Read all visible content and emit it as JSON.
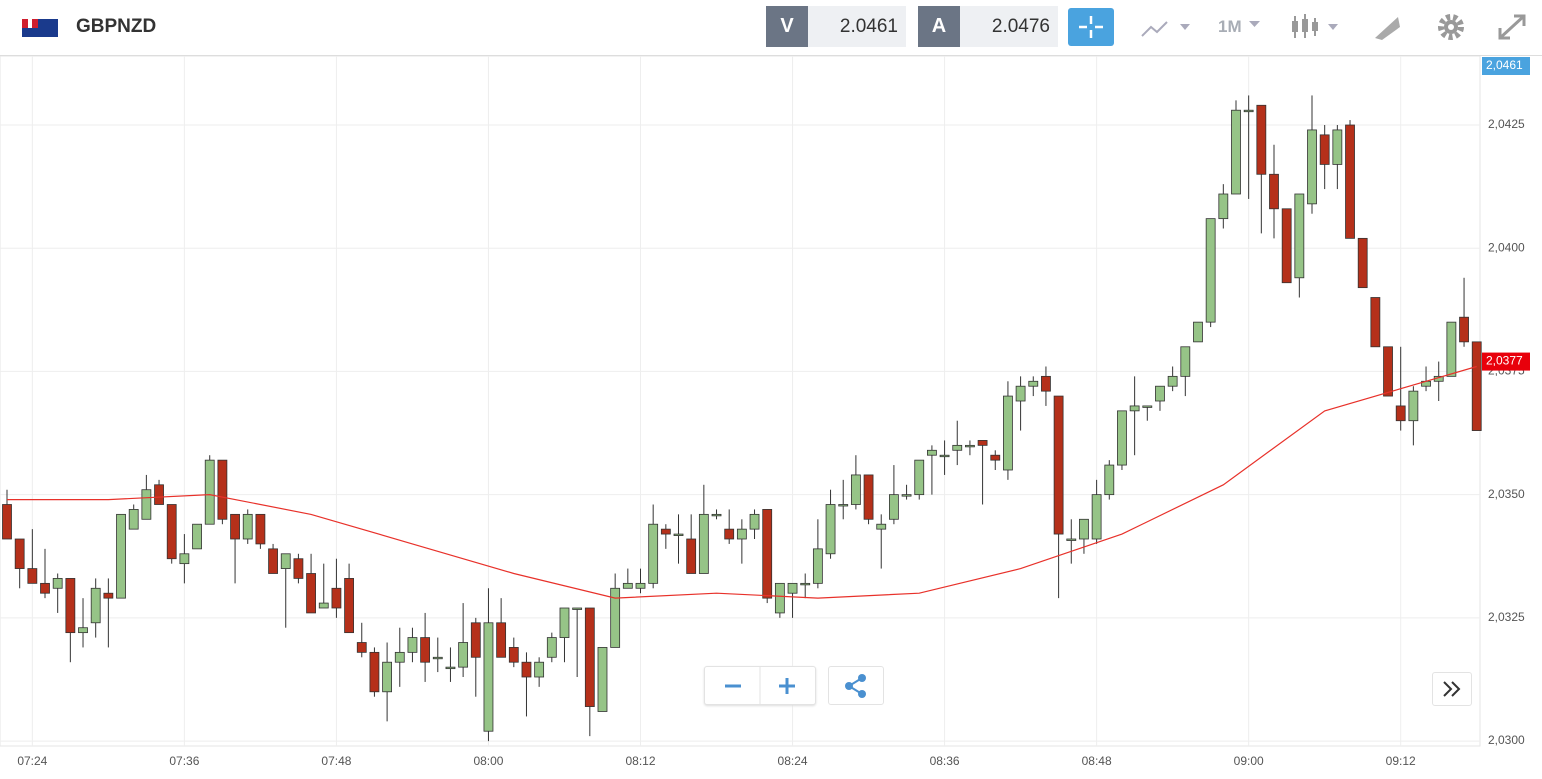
{
  "header": {
    "symbol": "GBPNZD",
    "bid_label": "V",
    "bid": "2.0461",
    "ask_label": "A",
    "ask": "2.0476",
    "timeframe": "1M"
  },
  "chart_data": {
    "type": "candlestick",
    "x": [
      "07:22",
      "07:23",
      "07:24",
      "07:25",
      "07:26",
      "07:27",
      "07:28",
      "07:29",
      "07:30",
      "07:31",
      "07:32",
      "07:33",
      "07:34",
      "07:35",
      "07:36",
      "07:37",
      "07:38",
      "07:39",
      "07:40",
      "07:41",
      "07:42",
      "07:43",
      "07:44",
      "07:45",
      "07:46",
      "07:47",
      "07:48",
      "07:49",
      "07:50",
      "07:51",
      "07:52",
      "07:53",
      "07:54",
      "07:55",
      "07:56",
      "07:57",
      "07:58",
      "07:59",
      "08:00",
      "08:01",
      "08:02",
      "08:03",
      "08:04",
      "08:05",
      "08:06",
      "08:07",
      "08:08",
      "08:09",
      "08:10",
      "08:11",
      "08:12",
      "08:13",
      "08:14",
      "08:15",
      "08:16",
      "08:17",
      "08:18",
      "08:19",
      "08:20",
      "08:21",
      "08:22",
      "08:23",
      "08:24",
      "08:25",
      "08:26",
      "08:27",
      "08:28",
      "08:29",
      "08:30",
      "08:31",
      "08:32",
      "08:33",
      "08:34",
      "08:35",
      "08:36",
      "08:37",
      "08:38",
      "08:39",
      "08:40",
      "08:41",
      "08:42",
      "08:43",
      "08:44",
      "08:45",
      "08:46",
      "08:47",
      "08:48",
      "08:49",
      "08:50",
      "08:51",
      "08:52",
      "08:53",
      "08:54",
      "08:55",
      "08:56",
      "08:57",
      "08:58",
      "08:59",
      "09:00",
      "09:01",
      "09:02",
      "09:03",
      "09:04",
      "09:05",
      "09:06",
      "09:07",
      "09:08",
      "09:09",
      "09:10",
      "09:11",
      "09:12",
      "09:13",
      "09:14",
      "09:15",
      "09:16",
      "09:17",
      "09:18"
    ],
    "open": [
      2.0348,
      2.0341,
      2.0335,
      2.0332,
      2.0331,
      2.0333,
      2.0322,
      2.0324,
      2.033,
      2.0329,
      2.0343,
      2.0345,
      2.0352,
      2.0348,
      2.0336,
      2.0339,
      2.0344,
      2.0357,
      2.0346,
      2.0341,
      2.0346,
      2.0339,
      2.0335,
      2.0337,
      2.0334,
      2.0327,
      2.0331,
      2.0333,
      2.032,
      2.0318,
      2.031,
      2.0316,
      2.0318,
      2.0321,
      2.0317,
      2.0315,
      2.0315,
      2.0324,
      2.0302,
      2.0324,
      2.0319,
      2.0316,
      2.0313,
      2.0317,
      2.0321,
      2.0327,
      2.0327,
      2.0306,
      2.0319,
      2.0331,
      2.0331,
      2.0332,
      2.0343,
      2.0342,
      2.0341,
      2.0334,
      2.0346,
      2.0343,
      2.0341,
      2.0343,
      2.0347,
      2.0326,
      2.033,
      2.0332,
      2.0332,
      2.0338,
      2.0348,
      2.0348,
      2.0354,
      2.0343,
      2.0345,
      2.035,
      2.035,
      2.0358,
      2.0358,
      2.0359,
      2.036,
      2.0361,
      2.0358,
      2.0355,
      2.0369,
      2.0372,
      2.0374,
      2.037,
      2.0341,
      2.0341,
      2.0341,
      2.035,
      2.0356,
      2.0367,
      2.0368,
      2.0369,
      2.0372,
      2.0374,
      2.0381,
      2.0385,
      2.0406,
      2.0411,
      2.0428,
      2.0429,
      2.0415,
      2.0408,
      2.0394,
      2.0409,
      2.0423,
      2.0417,
      2.0425,
      2.0402,
      2.039,
      2.038,
      2.0368,
      2.0365,
      2.0372,
      2.0373,
      2.0374,
      2.0386,
      2.0381
    ],
    "high": [
      2.0351,
      2.0341,
      2.0343,
      2.0339,
      2.0334,
      2.0333,
      2.0329,
      2.0333,
      2.0333,
      2.0346,
      2.0348,
      2.0354,
      2.0353,
      2.0348,
      2.0342,
      2.0344,
      2.0358,
      2.0357,
      2.0346,
      2.0347,
      2.0346,
      2.034,
      2.0338,
      2.0338,
      2.0338,
      2.0336,
      2.0337,
      2.0336,
      2.0324,
      2.0319,
      2.032,
      2.0323,
      2.0323,
      2.0326,
      2.0321,
      2.0319,
      2.0328,
      2.0325,
      2.0331,
      2.0329,
      2.0321,
      2.0318,
      2.0317,
      2.0322,
      2.0327,
      2.0327,
      2.0327,
      2.0319,
      2.0334,
      2.0335,
      2.0335,
      2.0348,
      2.0344,
      2.0346,
      2.0346,
      2.0352,
      2.0347,
      2.0347,
      2.0345,
      2.0347,
      2.0347,
      2.0332,
      2.0332,
      2.0334,
      2.0345,
      2.0351,
      2.0353,
      2.0358,
      2.0354,
      2.0346,
      2.0356,
      2.0352,
      2.0357,
      2.036,
      2.0361,
      2.0365,
      2.0361,
      2.0361,
      2.0359,
      2.0373,
      2.0374,
      2.0374,
      2.0376,
      2.037,
      2.0345,
      2.0345,
      2.0353,
      2.0357,
      2.0367,
      2.0374,
      2.0368,
      2.0372,
      2.0376,
      2.038,
      2.0385,
      2.0406,
      2.0413,
      2.043,
      2.0431,
      2.0429,
      2.0421,
      2.0408,
      2.0411,
      2.0431,
      2.0425,
      2.0425,
      2.0426,
      2.0402,
      2.039,
      2.038,
      2.038,
      2.0372,
      2.0376,
      2.0377,
      2.0385,
      2.0394,
      2.0381
    ],
    "low": [
      2.0341,
      2.0331,
      2.0332,
      2.0329,
      2.0326,
      2.0316,
      2.0319,
      2.0321,
      2.0319,
      2.0329,
      2.0343,
      2.0345,
      2.0348,
      2.0336,
      2.0332,
      2.0339,
      2.0344,
      2.0344,
      2.0332,
      2.034,
      2.0339,
      2.0334,
      2.0323,
      2.0332,
      2.0326,
      2.0327,
      2.0325,
      2.0322,
      2.0317,
      2.0309,
      2.0304,
      2.0311,
      2.0316,
      2.0312,
      2.0314,
      2.0312,
      2.0313,
      2.0309,
      2.03,
      2.0317,
      2.0315,
      2.0305,
      2.0311,
      2.0316,
      2.0316,
      2.0313,
      2.0301,
      2.0306,
      2.0319,
      2.0331,
      2.033,
      2.0331,
      2.0339,
      2.0336,
      2.0334,
      2.0334,
      2.0345,
      2.034,
      2.0336,
      2.0341,
      2.0328,
      2.0325,
      2.0325,
      2.0329,
      2.0331,
      2.0337,
      2.0345,
      2.0347,
      2.0344,
      2.0335,
      2.0344,
      2.0349,
      2.0349,
      2.035,
      2.0354,
      2.0356,
      2.0358,
      2.0348,
      2.0355,
      2.0353,
      2.0363,
      2.037,
      2.0368,
      2.0329,
      2.0336,
      2.0338,
      2.034,
      2.0349,
      2.0355,
      2.0358,
      2.0365,
      2.0367,
      2.0371,
      2.037,
      2.0381,
      2.0384,
      2.0404,
      2.0411,
      2.041,
      2.0403,
      2.0402,
      2.0393,
      2.039,
      2.0407,
      2.0412,
      2.0412,
      2.0402,
      2.0392,
      2.038,
      2.037,
      2.0363,
      2.036,
      2.0371,
      2.0369,
      2.0374,
      2.038,
      2.0363
    ],
    "close": [
      2.0341,
      2.0335,
      2.0332,
      2.033,
      2.0333,
      2.0322,
      2.0323,
      2.0331,
      2.0329,
      2.0346,
      2.0347,
      2.0351,
      2.0348,
      2.0337,
      2.0338,
      2.0344,
      2.0357,
      2.0345,
      2.0341,
      2.0346,
      2.034,
      2.0334,
      2.0338,
      2.0333,
      2.0326,
      2.0328,
      2.0327,
      2.0322,
      2.0318,
      2.031,
      2.0316,
      2.0318,
      2.0321,
      2.0316,
      2.0317,
      2.0315,
      2.032,
      2.0317,
      2.0324,
      2.0317,
      2.0316,
      2.0313,
      2.0316,
      2.0321,
      2.0327,
      2.0327,
      2.0307,
      2.0319,
      2.0331,
      2.0332,
      2.0332,
      2.0344,
      2.0342,
      2.0342,
      2.0334,
      2.0346,
      2.0346,
      2.0341,
      2.0343,
      2.0346,
      2.0329,
      2.0332,
      2.0332,
      2.0332,
      2.0339,
      2.0348,
      2.0348,
      2.0354,
      2.0345,
      2.0344,
      2.035,
      2.035,
      2.0357,
      2.0359,
      2.0358,
      2.036,
      2.036,
      2.036,
      2.0357,
      2.037,
      2.0372,
      2.0373,
      2.0371,
      2.0342,
      2.0341,
      2.0345,
      2.035,
      2.0356,
      2.0367,
      2.0368,
      2.0368,
      2.0372,
      2.0374,
      2.038,
      2.0385,
      2.0406,
      2.0411,
      2.0428,
      2.0428,
      2.0415,
      2.0408,
      2.0393,
      2.0411,
      2.0424,
      2.0417,
      2.0424,
      2.0402,
      2.0392,
      2.038,
      2.037,
      2.0365,
      2.0371,
      2.0373,
      2.0374,
      2.0385,
      2.0381,
      2.0363
    ],
    "up_color": "#96c487",
    "down_color": "#b5301a",
    "ma_x": [
      "07:22",
      "07:30",
      "07:38",
      "07:46",
      "07:54",
      "08:02",
      "08:10",
      "08:18",
      "08:26",
      "08:34",
      "08:42",
      "08:50",
      "08:58",
      "09:06",
      "09:14",
      "09:18"
    ],
    "ma_values": [
      2.0349,
      2.0349,
      2.035,
      2.0346,
      2.034,
      2.0334,
      2.0329,
      2.033,
      2.0329,
      2.033,
      2.0335,
      2.0342,
      2.0352,
      2.0367,
      2.0373,
      2.0376
    ],
    "ma_color": "#e8312a",
    "ylim": [
      2.0299,
      2.0439
    ],
    "yticks": [
      {
        "value": 2.03,
        "label": "2,0300"
      },
      {
        "value": 2.0325,
        "label": "2,0325"
      },
      {
        "value": 2.035,
        "label": "2,0350"
      },
      {
        "value": 2.0375,
        "label": "2,0375"
      },
      {
        "value": 2.04,
        "label": "2,0400"
      },
      {
        "value": 2.0425,
        "label": "2,0425"
      }
    ],
    "xticks": [
      "07:24",
      "07:36",
      "07:48",
      "08:00",
      "08:12",
      "08:24",
      "08:36",
      "08:48",
      "09:00",
      "09:12"
    ],
    "grid": true,
    "top_tag": {
      "label": "2,0461",
      "color": "#4aa3df"
    },
    "last_tag": {
      "label": "2,0377",
      "value": 2.0377,
      "color": "#e8000b"
    }
  }
}
